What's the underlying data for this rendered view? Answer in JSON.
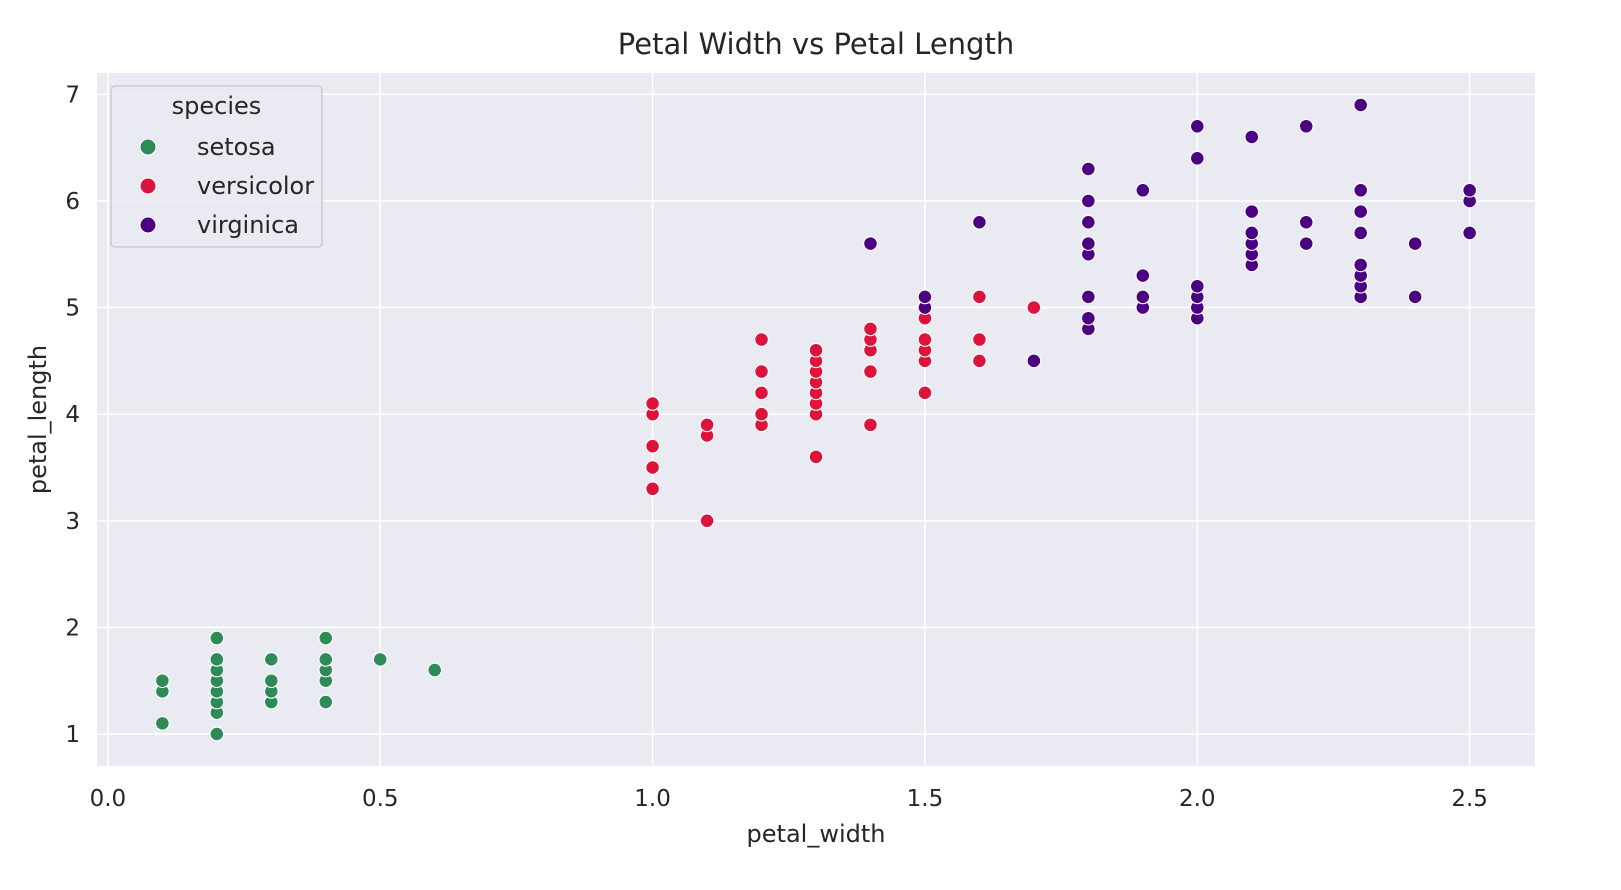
{
  "chart_data": {
    "type": "scatter",
    "title": "Petal Width vs Petal Length",
    "xlabel": "petal_width",
    "ylabel": "petal_length",
    "xlim": [
      -0.02,
      2.62
    ],
    "ylim": [
      0.7,
      7.2
    ],
    "xticks": [
      0.0,
      0.5,
      1.0,
      1.5,
      2.0,
      2.5
    ],
    "xtick_labels": [
      "0.0",
      "0.5",
      "1.0",
      "1.5",
      "2.0",
      "2.5"
    ],
    "yticks": [
      1,
      2,
      3,
      4,
      5,
      6,
      7
    ],
    "ytick_labels": [
      "1",
      "2",
      "3",
      "4",
      "5",
      "6",
      "7"
    ],
    "grid": true,
    "legend": {
      "title": "species",
      "placement": "top-left"
    },
    "series": [
      {
        "name": "setosa",
        "color": "#2e8b57",
        "points": [
          [
            0.1,
            1.1
          ],
          [
            0.1,
            1.4
          ],
          [
            0.1,
            1.5
          ],
          [
            0.2,
            1.0
          ],
          [
            0.2,
            1.2
          ],
          [
            0.2,
            1.3
          ],
          [
            0.2,
            1.4
          ],
          [
            0.2,
            1.5
          ],
          [
            0.2,
            1.6
          ],
          [
            0.2,
            1.7
          ],
          [
            0.2,
            1.9
          ],
          [
            0.3,
            1.3
          ],
          [
            0.3,
            1.4
          ],
          [
            0.3,
            1.5
          ],
          [
            0.3,
            1.7
          ],
          [
            0.4,
            1.3
          ],
          [
            0.4,
            1.5
          ],
          [
            0.4,
            1.6
          ],
          [
            0.4,
            1.7
          ],
          [
            0.4,
            1.9
          ],
          [
            0.5,
            1.7
          ],
          [
            0.6,
            1.6
          ]
        ]
      },
      {
        "name": "versicolor",
        "color": "#dc143c",
        "points": [
          [
            1.0,
            3.3
          ],
          [
            1.0,
            3.5
          ],
          [
            1.0,
            3.7
          ],
          [
            1.0,
            4.0
          ],
          [
            1.0,
            4.1
          ],
          [
            1.1,
            3.0
          ],
          [
            1.1,
            3.8
          ],
          [
            1.1,
            3.9
          ],
          [
            1.2,
            3.9
          ],
          [
            1.2,
            4.0
          ],
          [
            1.2,
            4.2
          ],
          [
            1.2,
            4.4
          ],
          [
            1.2,
            4.7
          ],
          [
            1.3,
            3.6
          ],
          [
            1.3,
            4.0
          ],
          [
            1.3,
            4.1
          ],
          [
            1.3,
            4.2
          ],
          [
            1.3,
            4.3
          ],
          [
            1.3,
            4.4
          ],
          [
            1.3,
            4.5
          ],
          [
            1.3,
            4.6
          ],
          [
            1.4,
            3.9
          ],
          [
            1.4,
            4.4
          ],
          [
            1.4,
            4.6
          ],
          [
            1.4,
            4.7
          ],
          [
            1.4,
            4.8
          ],
          [
            1.5,
            4.2
          ],
          [
            1.5,
            4.5
          ],
          [
            1.5,
            4.6
          ],
          [
            1.5,
            4.7
          ],
          [
            1.5,
            4.9
          ],
          [
            1.6,
            4.5
          ],
          [
            1.6,
            4.7
          ],
          [
            1.6,
            5.1
          ],
          [
            1.7,
            5.0
          ]
        ]
      },
      {
        "name": "virginica",
        "color": "#4b0082",
        "points": [
          [
            1.4,
            5.6
          ],
          [
            1.5,
            5.0
          ],
          [
            1.5,
            5.1
          ],
          [
            1.6,
            5.8
          ],
          [
            1.7,
            4.5
          ],
          [
            1.8,
            4.8
          ],
          [
            1.8,
            4.9
          ],
          [
            1.8,
            5.1
          ],
          [
            1.8,
            5.5
          ],
          [
            1.8,
            5.6
          ],
          [
            1.8,
            5.8
          ],
          [
            1.8,
            6.0
          ],
          [
            1.8,
            6.3
          ],
          [
            1.9,
            5.0
          ],
          [
            1.9,
            5.1
          ],
          [
            1.9,
            5.3
          ],
          [
            1.9,
            6.1
          ],
          [
            2.0,
            4.9
          ],
          [
            2.0,
            5.0
          ],
          [
            2.0,
            5.1
          ],
          [
            2.0,
            5.2
          ],
          [
            2.0,
            6.4
          ],
          [
            2.0,
            6.7
          ],
          [
            2.1,
            5.4
          ],
          [
            2.1,
            5.5
          ],
          [
            2.1,
            5.6
          ],
          [
            2.1,
            5.7
          ],
          [
            2.1,
            5.9
          ],
          [
            2.1,
            6.6
          ],
          [
            2.2,
            5.6
          ],
          [
            2.2,
            5.8
          ],
          [
            2.2,
            6.7
          ],
          [
            2.3,
            5.1
          ],
          [
            2.3,
            5.2
          ],
          [
            2.3,
            5.3
          ],
          [
            2.3,
            5.4
          ],
          [
            2.3,
            5.7
          ],
          [
            2.3,
            5.9
          ],
          [
            2.3,
            6.1
          ],
          [
            2.3,
            6.9
          ],
          [
            2.4,
            5.1
          ],
          [
            2.4,
            5.6
          ],
          [
            2.5,
            5.7
          ],
          [
            2.5,
            6.0
          ],
          [
            2.5,
            6.1
          ]
        ]
      }
    ]
  }
}
